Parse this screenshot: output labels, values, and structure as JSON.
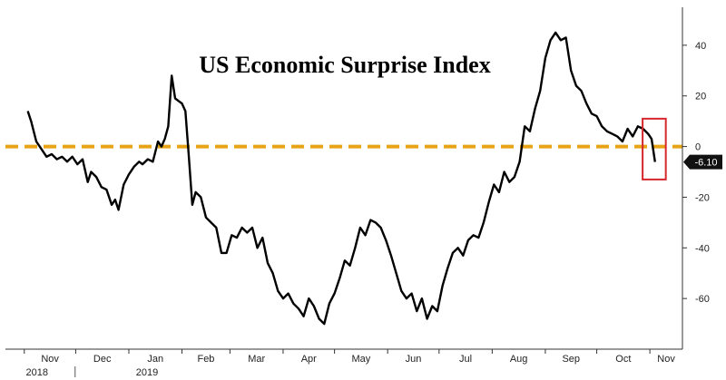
{
  "chart_data": {
    "type": "line",
    "title": "US Economic Surprise Index",
    "xlabel": "",
    "ylabel": "",
    "ylim": [
      -80,
      55
    ],
    "yticks": [
      40,
      20,
      0,
      -20,
      -40,
      -60
    ],
    "xticks": [
      {
        "label": "Nov",
        "at": "2018-11-01"
      },
      {
        "label": "Dec",
        "at": "2018-12-01"
      },
      {
        "label": "Jan",
        "at": "2019-01-01"
      },
      {
        "label": "Feb",
        "at": "2019-02-01"
      },
      {
        "label": "Mar",
        "at": "2019-03-01"
      },
      {
        "label": "Apr",
        "at": "2019-04-01"
      },
      {
        "label": "May",
        "at": "2019-05-01"
      },
      {
        "label": "Jun",
        "at": "2019-06-01"
      },
      {
        "label": "Jul",
        "at": "2019-07-01"
      },
      {
        "label": "Aug",
        "at": "2019-08-01"
      },
      {
        "label": "Sep",
        "at": "2019-09-01"
      },
      {
        "label": "Oct",
        "at": "2019-10-01"
      },
      {
        "label": "Nov",
        "at": "2019-11-01"
      }
    ],
    "year_labels": [
      {
        "label": "2018",
        "at": "2018-11-01"
      },
      {
        "label": "2019",
        "at": "2019-01-01"
      }
    ],
    "reference_line": {
      "y": 0,
      "color": "#E8A317",
      "style": "dashed"
    },
    "highlight_box": {
      "x_start": "2019-11-01",
      "x_end": "2019-11-05",
      "y_min": -13,
      "y_max": 11,
      "color": "#D6262B"
    },
    "last_value_label": "-6.10",
    "line_color": "#000000",
    "series": [
      {
        "values": [
          [
            "2018-11-03",
            14
          ],
          [
            "2018-11-05",
            10
          ],
          [
            "2018-11-08",
            2
          ],
          [
            "2018-11-11",
            -1
          ],
          [
            "2018-11-14",
            -4
          ],
          [
            "2018-11-17",
            -3
          ],
          [
            "2018-11-20",
            -5
          ],
          [
            "2018-11-23",
            -4
          ],
          [
            "2018-11-26",
            -6
          ],
          [
            "2018-11-29",
            -4
          ],
          [
            "2018-12-02",
            -7
          ],
          [
            "2018-12-05",
            -5
          ],
          [
            "2018-12-08",
            -14
          ],
          [
            "2018-12-10",
            -10
          ],
          [
            "2018-12-13",
            -12
          ],
          [
            "2018-12-16",
            -16
          ],
          [
            "2018-12-19",
            -17
          ],
          [
            "2018-12-22",
            -23
          ],
          [
            "2018-12-24",
            -21
          ],
          [
            "2018-12-26",
            -25
          ],
          [
            "2018-12-29",
            -15
          ],
          [
            "2019-01-01",
            -11
          ],
          [
            "2019-01-04",
            -8
          ],
          [
            "2019-01-07",
            -6
          ],
          [
            "2019-01-09",
            -7
          ],
          [
            "2019-01-12",
            -5
          ],
          [
            "2019-01-15",
            -6
          ],
          [
            "2019-01-18",
            2
          ],
          [
            "2019-01-20",
            0
          ],
          [
            "2019-01-22",
            3
          ],
          [
            "2019-01-24",
            8
          ],
          [
            "2019-01-26",
            28
          ],
          [
            "2019-01-28",
            19
          ],
          [
            "2019-01-30",
            18
          ],
          [
            "2019-02-01",
            17
          ],
          [
            "2019-02-03",
            14
          ],
          [
            "2019-02-05",
            -4
          ],
          [
            "2019-02-07",
            -23
          ],
          [
            "2019-02-09",
            -18
          ],
          [
            "2019-02-12",
            -20
          ],
          [
            "2019-02-15",
            -28
          ],
          [
            "2019-02-18",
            -30
          ],
          [
            "2019-02-21",
            -32
          ],
          [
            "2019-02-24",
            -42
          ],
          [
            "2019-02-27",
            -42
          ],
          [
            "2019-03-02",
            -35
          ],
          [
            "2019-03-05",
            -36
          ],
          [
            "2019-03-08",
            -32
          ],
          [
            "2019-03-11",
            -34
          ],
          [
            "2019-03-14",
            -32
          ],
          [
            "2019-03-17",
            -40
          ],
          [
            "2019-03-20",
            -36
          ],
          [
            "2019-03-23",
            -46
          ],
          [
            "2019-03-26",
            -50
          ],
          [
            "2019-03-29",
            -57
          ],
          [
            "2019-04-01",
            -60
          ],
          [
            "2019-04-04",
            -58
          ],
          [
            "2019-04-07",
            -62
          ],
          [
            "2019-04-10",
            -64
          ],
          [
            "2019-04-13",
            -67
          ],
          [
            "2019-04-16",
            -60
          ],
          [
            "2019-04-19",
            -63
          ],
          [
            "2019-04-22",
            -68
          ],
          [
            "2019-04-25",
            -70
          ],
          [
            "2019-04-28",
            -62
          ],
          [
            "2019-05-01",
            -58
          ],
          [
            "2019-05-04",
            -52
          ],
          [
            "2019-05-07",
            -45
          ],
          [
            "2019-05-10",
            -47
          ],
          [
            "2019-05-13",
            -40
          ],
          [
            "2019-05-16",
            -32
          ],
          [
            "2019-05-19",
            -35
          ],
          [
            "2019-05-22",
            -29
          ],
          [
            "2019-05-25",
            -30
          ],
          [
            "2019-05-28",
            -32
          ],
          [
            "2019-05-31",
            -37
          ],
          [
            "2019-06-03",
            -43
          ],
          [
            "2019-06-06",
            -50
          ],
          [
            "2019-06-09",
            -57
          ],
          [
            "2019-06-12",
            -60
          ],
          [
            "2019-06-15",
            -58
          ],
          [
            "2019-06-18",
            -65
          ],
          [
            "2019-06-21",
            -60
          ],
          [
            "2019-06-24",
            -68
          ],
          [
            "2019-06-27",
            -63
          ],
          [
            "2019-06-30",
            -65
          ],
          [
            "2019-07-03",
            -55
          ],
          [
            "2019-07-06",
            -48
          ],
          [
            "2019-07-09",
            -42
          ],
          [
            "2019-07-12",
            -40
          ],
          [
            "2019-07-15",
            -43
          ],
          [
            "2019-07-18",
            -37
          ],
          [
            "2019-07-21",
            -35
          ],
          [
            "2019-07-24",
            -36
          ],
          [
            "2019-07-27",
            -30
          ],
          [
            "2019-07-30",
            -22
          ],
          [
            "2019-08-02",
            -15
          ],
          [
            "2019-08-05",
            -18
          ],
          [
            "2019-08-08",
            -10
          ],
          [
            "2019-08-11",
            -14
          ],
          [
            "2019-08-14",
            -12
          ],
          [
            "2019-08-17",
            -6
          ],
          [
            "2019-08-20",
            8
          ],
          [
            "2019-08-23",
            6
          ],
          [
            "2019-08-26",
            15
          ],
          [
            "2019-08-29",
            22
          ],
          [
            "2019-09-01",
            35
          ],
          [
            "2019-09-04",
            42
          ],
          [
            "2019-09-07",
            45
          ],
          [
            "2019-09-10",
            42
          ],
          [
            "2019-09-13",
            43
          ],
          [
            "2019-09-16",
            30
          ],
          [
            "2019-09-19",
            24
          ],
          [
            "2019-09-22",
            22
          ],
          [
            "2019-09-25",
            17
          ],
          [
            "2019-09-28",
            13
          ],
          [
            "2019-10-01",
            12
          ],
          [
            "2019-10-04",
            8
          ],
          [
            "2019-10-07",
            6
          ],
          [
            "2019-10-10",
            5
          ],
          [
            "2019-10-13",
            4
          ],
          [
            "2019-10-16",
            2
          ],
          [
            "2019-10-19",
            7
          ],
          [
            "2019-10-22",
            4
          ],
          [
            "2019-10-25",
            8
          ],
          [
            "2019-10-28",
            7
          ],
          [
            "2019-10-31",
            5
          ],
          [
            "2019-11-02",
            3
          ],
          [
            "2019-11-04",
            -6.1
          ]
        ]
      }
    ]
  }
}
